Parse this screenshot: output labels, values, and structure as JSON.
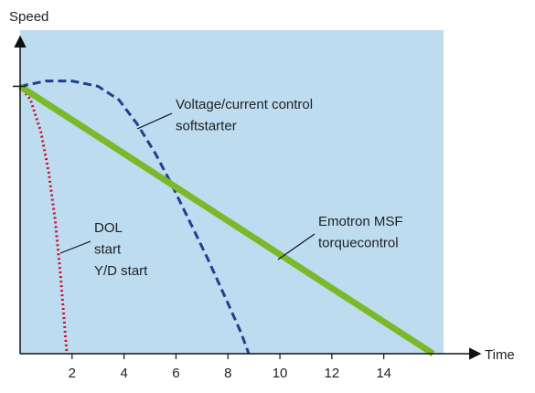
{
  "chart_data": {
    "type": "line",
    "y_label": "Speed",
    "x_label": "Time",
    "xlim": [
      0,
      16.3
    ],
    "ylim": [
      0,
      121
    ],
    "xticks": [
      2,
      4,
      6,
      8,
      10,
      12,
      14
    ],
    "yticks": [
      100
    ],
    "y_tick_labels": false,
    "background": "#bddcf0",
    "series": [
      {
        "color": "#c8102e",
        "style": "dotted",
        "x": [
          0,
          0.4,
          0.8,
          1.1,
          1.35,
          1.55,
          1.7,
          1.8
        ],
        "values": [
          100,
          95,
          83,
          68,
          50,
          30,
          12,
          0
        ]
      },
      {
        "color": "#1f3f8f",
        "style": "dashed",
        "x": [
          0,
          1,
          2,
          3,
          3.8,
          4.5,
          5.2,
          5.8,
          6.5,
          7.2,
          7.9,
          8.5,
          8.8
        ],
        "values": [
          100,
          102,
          102,
          100,
          95,
          86,
          75,
          64,
          50,
          36,
          21,
          8,
          0
        ]
      },
      {
        "color": "#7ab929",
        "style": "solid",
        "x": [
          0,
          15.9
        ],
        "values": [
          100,
          0
        ]
      }
    ],
    "annotations": [
      {
        "lines": [
          "Voltage/current control",
          "softstarter"
        ],
        "series": 1
      },
      {
        "lines": [
          "Emotron MSF",
          "torquecontrol"
        ],
        "series": 2
      },
      {
        "lines": [
          "DOL",
          "start",
          "Y/D start"
        ],
        "series": 0
      }
    ]
  }
}
